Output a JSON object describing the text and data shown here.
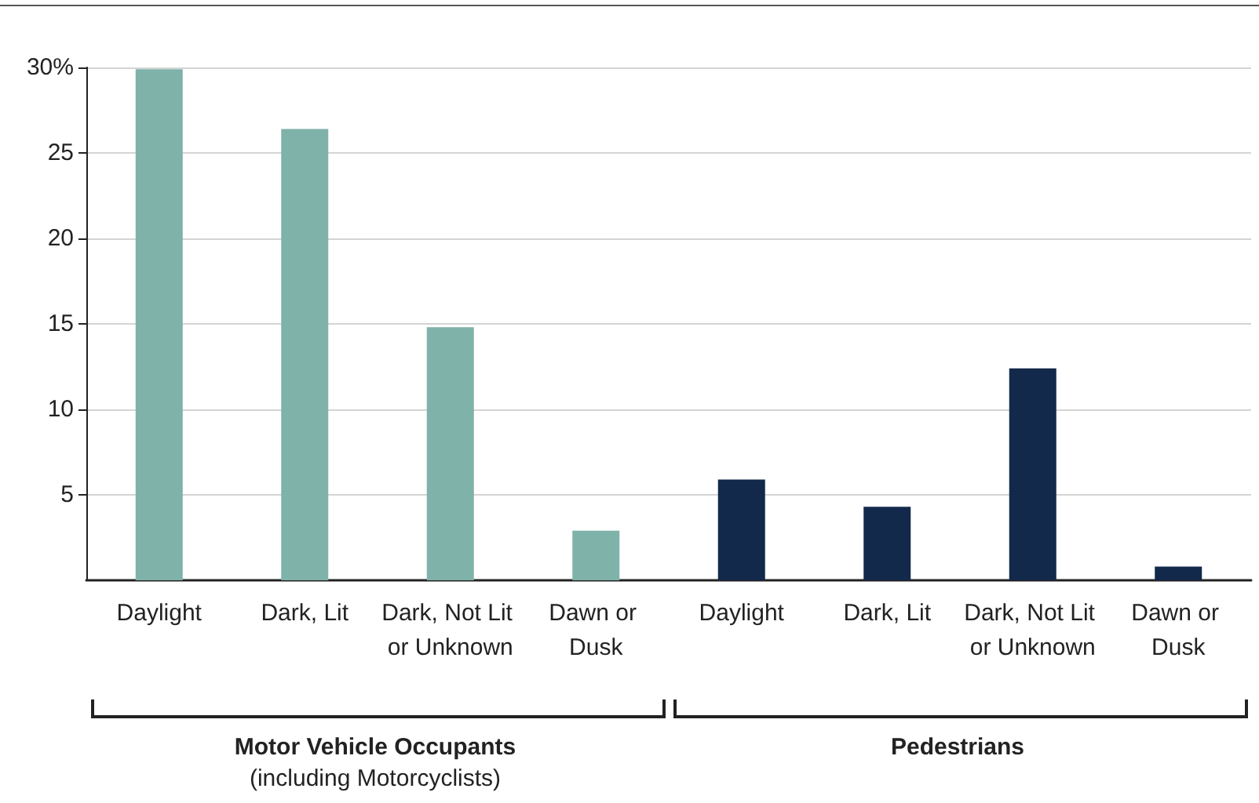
{
  "chart_data": {
    "type": "bar",
    "categories": [
      "Daylight",
      "Dark, Lit",
      "Dark, Not Lit or Unknown",
      "Dawn or Dusk",
      "Daylight",
      "Dark, Lit",
      "Dark, Not Lit or Unknown",
      "Dawn or Dusk"
    ],
    "values": [
      29.9,
      26.4,
      14.8,
      2.9,
      5.9,
      4.3,
      12.4,
      0.8
    ],
    "colors": [
      "#7fb2a9",
      "#7fb2a9",
      "#7fb2a9",
      "#7fb2a9",
      "#13294b",
      "#13294b",
      "#13294b",
      "#13294b"
    ],
    "ylim": [
      0,
      30
    ],
    "yticks": [
      {
        "value": 5,
        "label": "5"
      },
      10,
      15,
      20,
      25,
      {
        "value": 30,
        "label": "30%"
      }
    ],
    "grid": "y",
    "annotations": [
      "Motor Vehicle Occupants",
      "(including Motorcyclists)",
      "Pedestrians"
    ]
  }
}
